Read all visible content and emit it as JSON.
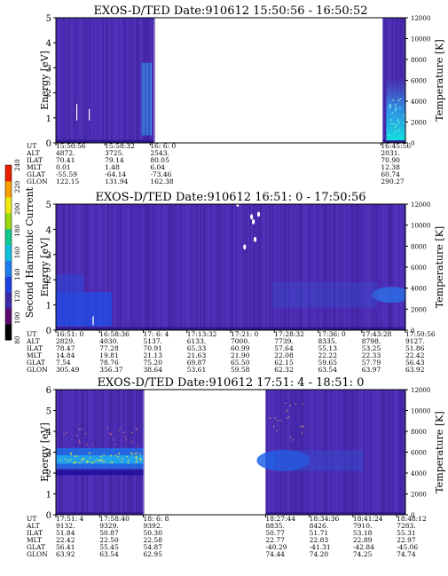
{
  "colorbar": {
    "label": "Second Harmonic Current",
    "ticks": [
      "80",
      "100",
      "120",
      "140",
      "160",
      "180",
      "200",
      "220",
      "240"
    ],
    "colors": [
      "#000000",
      "#5a0a6a",
      "#3a2aa8",
      "#1e40e0",
      "#1e7ef0",
      "#10c0e0",
      "#10c890",
      "#9ad810",
      "#f0e810",
      "#f8a000",
      "#e82000"
    ]
  },
  "orbit_row_labels": [
    "UT",
    "ALT",
    "ILAT",
    "MLT",
    "GLAT",
    "GLON"
  ],
  "chart_data": [
    {
      "type": "heatmap",
      "title": "EXOS-D/TED  Date:910612  15:50:56 - 16:50:52",
      "ylabel": "Energy [eV]",
      "y2label": "Temperature [K]",
      "ylim": [
        0,
        5
      ],
      "yticks": [
        "0",
        "1",
        "2",
        "3",
        "4",
        "5"
      ],
      "y2lim": [
        0,
        12000
      ],
      "y2ticks": [
        "0",
        "2000",
        "4000",
        "6000",
        "8000",
        "10000",
        "12000"
      ],
      "data_segments": [
        [
          0.0,
          0.28
        ],
        [
          0.935,
          1.0
        ]
      ],
      "orbit_columns": [
        {
          "pos": 0.0,
          "values": [
            "15:50:56",
            "4872.",
            "70.41",
            "0.01",
            "-55.59",
            "122.15"
          ]
        },
        {
          "pos": 0.14,
          "values": [
            "15:58:32",
            "3725.",
            "79.14",
            "1.48",
            "-64.14",
            "131.94"
          ]
        },
        {
          "pos": 0.27,
          "values": [
            "16: 6: 0",
            "2543.",
            "80.05",
            "6.04",
            "-73.46",
            "162.38"
          ]
        },
        {
          "pos": 0.93,
          "values": [
            "16:45:56",
            "2031.",
            "70.90",
            "12.38",
            "60.74",
            "290.27"
          ]
        }
      ],
      "bg_color": "#4a2ab0"
    },
    {
      "type": "heatmap",
      "title": "EXOS-D/TED  Date:910612  16:51: 0 - 17:50:56",
      "ylabel": "Energy [eV]",
      "y2label": "Temperature [K]",
      "ylim": [
        0,
        5
      ],
      "yticks": [
        "0",
        "1",
        "2",
        "3",
        "4",
        "5"
      ],
      "y2lim": [
        0,
        12000
      ],
      "y2ticks": [
        "0",
        "2000",
        "4000",
        "6000",
        "8000",
        "10000",
        "12000"
      ],
      "data_segments": [
        [
          0.0,
          1.0
        ]
      ],
      "orbit_columns": [
        {
          "pos": 0.0,
          "values": [
            "16:51: 0",
            "2829.",
            "78.47",
            "14.84",
            "7.54",
            "305.49"
          ]
        },
        {
          "pos": 0.125,
          "values": [
            "16:58:36",
            "4030.",
            "77.28",
            "19.81",
            "78.76",
            "356.37"
          ]
        },
        {
          "pos": 0.25,
          "values": [
            "17: 6: 4",
            "5137.",
            "70.91",
            "21.13",
            "75.20",
            "38.64"
          ]
        },
        {
          "pos": 0.375,
          "values": [
            "17:13:32",
            "6133.",
            "65.33",
            "21.63",
            "69.87",
            "53.61"
          ]
        },
        {
          "pos": 0.5,
          "values": [
            "17:21: 0",
            "7000.",
            "60.99",
            "21.90",
            "65.50",
            "59.58"
          ]
        },
        {
          "pos": 0.625,
          "values": [
            "17:28:32",
            "7739.",
            "57.64",
            "22.08",
            "62.15",
            "62.32"
          ]
        },
        {
          "pos": 0.75,
          "values": [
            "17:36: 0",
            "8335.",
            "55.13",
            "22.22",
            "59.65",
            "63.54"
          ]
        },
        {
          "pos": 0.875,
          "values": [
            "17:43:28",
            "8798.",
            "53.25",
            "22.33",
            "57.79",
            "63.97"
          ]
        },
        {
          "pos": 1.0,
          "values": [
            "17:50:56",
            "9127.",
            "51.86",
            "22.42",
            "56.43",
            "63.92"
          ]
        }
      ],
      "bg_color": "#4a2ab0"
    },
    {
      "type": "heatmap",
      "title": "EXOS-D/TED  Date:910612  17:51: 4 - 18:51: 0",
      "ylabel": "Energy [eV]",
      "y2label": "Temperature [K]",
      "ylim": [
        0,
        6
      ],
      "yticks": [
        "0",
        "1",
        "2",
        "3",
        "4",
        "5",
        "6"
      ],
      "y2lim": [
        0,
        12000
      ],
      "y2ticks": [
        "0",
        "2000",
        "4000",
        "6000",
        "8000",
        "10000",
        "12000"
      ],
      "data_segments": [
        [
          0.0,
          0.25
        ],
        [
          0.6,
          1.0
        ]
      ],
      "orbit_columns": [
        {
          "pos": 0.0,
          "values": [
            "17:51: 4",
            "9132.",
            "51.84",
            "22.42",
            "56.41",
            "63.92"
          ]
        },
        {
          "pos": 0.125,
          "values": [
            "17:58:40",
            "9329.",
            "50.87",
            "22.50",
            "55.45",
            "63.54"
          ]
        },
        {
          "pos": 0.25,
          "values": [
            "18: 6: 8",
            "9392.",
            "50.30",
            "22.58",
            "54.87",
            "62.95"
          ]
        },
        {
          "pos": 0.6,
          "values": [
            "18:27:44",
            "8835.",
            "50.77",
            "22.77",
            "-40.29",
            "74.44"
          ]
        },
        {
          "pos": 0.725,
          "values": [
            "18:34:36",
            "8426.",
            "51.71",
            "22.83",
            "-41.31",
            "74.20"
          ]
        },
        {
          "pos": 0.85,
          "values": [
            "18:41:24",
            "7910.",
            "53.18",
            "22.89",
            "-42.84",
            "74.25"
          ]
        },
        {
          "pos": 0.975,
          "values": [
            "18:48:12",
            "7283.",
            "55.31",
            "22.97",
            "-45.06",
            "74.74"
          ]
        }
      ],
      "bg_color": "#4a2ab0"
    }
  ]
}
